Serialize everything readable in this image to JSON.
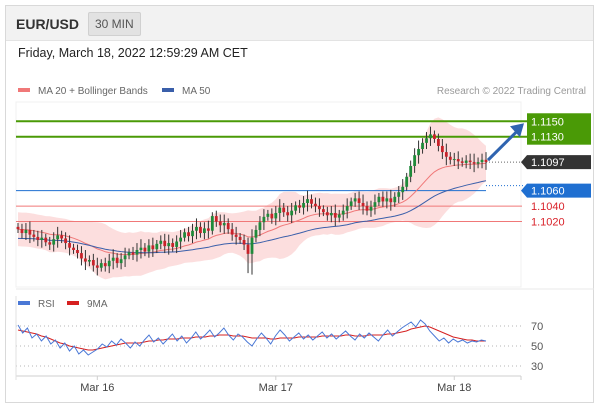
{
  "header": {
    "symbol": "EUR/USD",
    "timeframe": "30 MIN",
    "datetime": "Friday, March 18, 2022 12:59:29 AM CET"
  },
  "colors": {
    "resistance": "#4a9a06",
    "price_label": "#333333",
    "pivot": "#1f6fd1",
    "support": "#d9222a",
    "ma20": "#f07878",
    "ma50": "#3a5faa",
    "rsi": "#4a78d6",
    "rsi_ma": "#d62020",
    "arrow": "#2f64b0",
    "bands_fill": "#fbd3d3"
  },
  "chart_data": [
    {
      "type": "candlestick",
      "legend": [
        {
          "label": "MA 20 + Bollinger Bands",
          "color": "#f07878"
        },
        {
          "label": "MA 50",
          "color": "#3a5faa"
        }
      ],
      "copyright": "Research © 2022 Trading Central",
      "ylim": [
        1.0935,
        1.1175
      ],
      "x_ticks": [
        {
          "index": 20,
          "label": "Mar 16"
        },
        {
          "index": 65,
          "label": "Mar 17"
        },
        {
          "index": 110,
          "label": "Mar 18"
        }
      ],
      "levels": [
        {
          "value": 1.115,
          "label": "1.1150",
          "kind": "resistance"
        },
        {
          "value": 1.113,
          "label": "1.1130",
          "kind": "resistance"
        },
        {
          "value": 1.1097,
          "label": "1.1097",
          "kind": "last"
        },
        {
          "value": 1.106,
          "label": "1.1060",
          "kind": "pivot"
        },
        {
          "value": 1.104,
          "label": "1.1040",
          "kind": "support"
        },
        {
          "value": 1.102,
          "label": "1.1020",
          "kind": "support"
        }
      ],
      "close": [
        1.101,
        1.1005,
        1.1009,
        1.1003,
        1.1,
        1.0996,
        1.0999,
        1.0993,
        1.099,
        1.0997,
        1.1002,
        1.0998,
        1.0992,
        1.0986,
        1.0983,
        1.0979,
        1.0972,
        1.0968,
        1.097,
        1.0963,
        1.096,
        1.0966,
        1.0962,
        1.0969,
        1.0973,
        1.0966,
        1.0971,
        1.0976,
        1.098,
        1.0977,
        1.0983,
        1.0986,
        1.0981,
        1.0989,
        1.0984,
        1.0991,
        1.0995,
        1.0988,
        1.0992,
        1.0987,
        1.0994,
        1.0999,
        1.1006,
        1.1001,
        1.1008,
        1.1013,
        1.1005,
        1.1011,
        1.1008,
        1.1027,
        1.102,
        1.1015,
        1.1018,
        1.101,
        1.1003,
        1.1,
        1.0996,
        1.099,
        1.0978,
        1.0999,
        1.1009,
        1.1019,
        1.1026,
        1.103,
        1.1024,
        1.1031,
        1.1038,
        1.1032,
        1.1028,
        1.1034,
        1.1041,
        1.1038,
        1.1044,
        1.1049,
        1.1043,
        1.104,
        1.1036,
        1.1032,
        1.1028,
        1.1031,
        1.1025,
        1.1029,
        1.1034,
        1.104,
        1.1046,
        1.105,
        1.1044,
        1.104,
        1.1034,
        1.1039,
        1.1045,
        1.1052,
        1.1046,
        1.105,
        1.1045,
        1.1052,
        1.1058,
        1.1065,
        1.1078,
        1.1092,
        1.1106,
        1.1114,
        1.1122,
        1.1128,
        1.1133,
        1.1127,
        1.1118,
        1.111,
        1.1104,
        1.11,
        1.1101,
        1.1098,
        1.1096,
        1.1099,
        1.1097,
        1.1095,
        1.1097,
        1.11,
        1.1097
      ],
      "ma20_range": [
        1.1005,
        1.1085
      ],
      "ma50_range": [
        1.0975,
        1.1065
      ],
      "arrow_target": 1.115
    },
    {
      "type": "line",
      "legend": [
        {
          "label": "RSI",
          "color": "#4a78d6"
        },
        {
          "label": "9MA",
          "color": "#d62020"
        }
      ],
      "ylim": [
        24,
        80
      ],
      "y_ticks": [
        {
          "value": 70,
          "label": "70"
        },
        {
          "value": 50,
          "label": "50"
        },
        {
          "value": 30,
          "label": "30"
        }
      ],
      "series": [
        {
          "name": "RSI",
          "values": [
            71,
            63,
            68,
            58,
            62,
            55,
            60,
            52,
            56,
            48,
            53,
            45,
            50,
            42,
            46,
            41,
            44,
            47,
            52,
            49,
            55,
            51,
            57,
            53,
            48,
            54,
            50,
            56,
            61,
            54,
            58,
            52,
            57,
            62,
            55,
            60,
            53,
            58,
            64,
            57,
            61,
            66,
            59,
            63,
            68,
            61,
            56,
            62,
            59,
            54,
            50,
            57,
            63,
            58,
            52,
            60,
            66,
            61,
            55,
            59,
            63,
            57,
            61,
            56,
            60,
            64,
            58,
            62,
            57,
            61,
            65,
            60,
            56,
            62,
            58,
            63,
            59,
            55,
            61,
            66,
            60,
            64,
            68,
            71,
            74,
            69,
            76,
            72,
            65,
            60,
            55,
            58,
            53,
            57,
            54,
            56,
            53,
            55,
            54,
            56,
            55
          ]
        },
        {
          "name": "9MA",
          "values": [
            66,
            65,
            64,
            63,
            62,
            60,
            59,
            57,
            55,
            53,
            52,
            50,
            49,
            48,
            47,
            46,
            46,
            47,
            48,
            49,
            50,
            51,
            52,
            53,
            53,
            53,
            53,
            54,
            55,
            55,
            56,
            56,
            57,
            57,
            57,
            58,
            58,
            58,
            59,
            59,
            59,
            60,
            60,
            61,
            61,
            61,
            60,
            60,
            60,
            59,
            58,
            58,
            58,
            58,
            57,
            57,
            58,
            58,
            58,
            58,
            59,
            59,
            59,
            59,
            59,
            60,
            60,
            60,
            60,
            60,
            61,
            61,
            60,
            60,
            60,
            61,
            61,
            61,
            61,
            62,
            62,
            63,
            64,
            65,
            67,
            68,
            69,
            70,
            69,
            67,
            65,
            63,
            61,
            59,
            58,
            57,
            56,
            56,
            55,
            55,
            55
          ]
        }
      ]
    }
  ]
}
